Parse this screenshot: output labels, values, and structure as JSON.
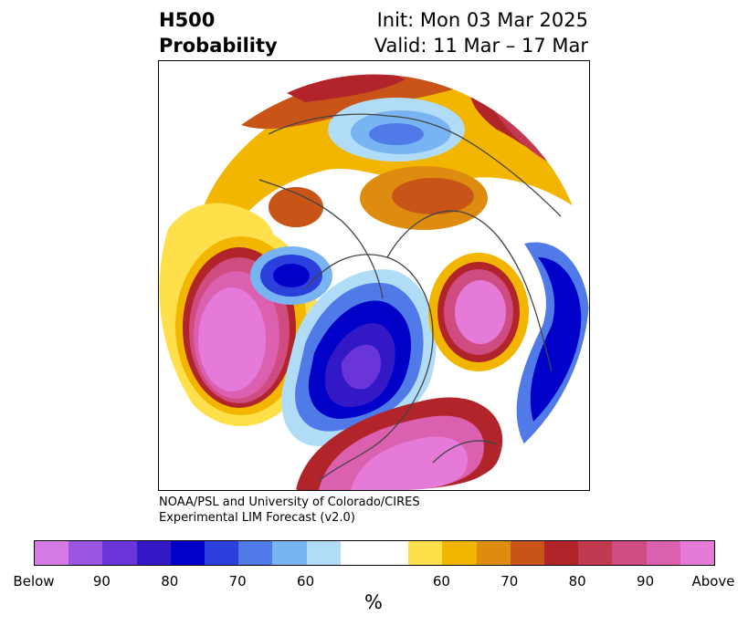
{
  "header": {
    "variable": "H500",
    "quantity": "Probability",
    "init": "Init: Mon 03 Mar 2025",
    "valid": "Valid: 11 Mar – 17 Mar"
  },
  "credit": {
    "line1": "NOAA/PSL and University of Colorado/CIRES",
    "line2": "Experimental LIM Forecast (v2.0)"
  },
  "colorbar": {
    "unit": "%",
    "below_colors": [
      "#d67ae6",
      "#9a55e0",
      "#6a35d8",
      "#3318c6",
      "#0000c8",
      "#2a3fdc",
      "#4f7ae8",
      "#79b4f2",
      "#b0dcf8"
    ],
    "neutral_color": "#ffffff",
    "above_colors": [
      "#ffe04a",
      "#f2b600",
      "#de8c10",
      "#c85418",
      "#b0242a",
      "#c23a50",
      "#ce4c80",
      "#dc60b0",
      "#e67ad8"
    ],
    "tick_labels": [
      "Below",
      "90",
      "80",
      "70",
      "60",
      "60",
      "70",
      "80",
      "90",
      "Above"
    ]
  }
}
